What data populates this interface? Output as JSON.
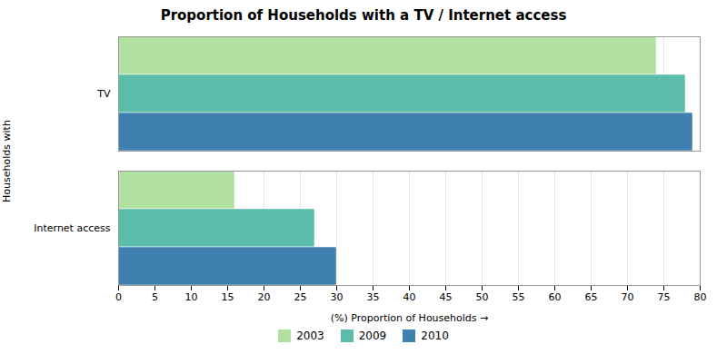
{
  "chart_data": {
    "type": "bar",
    "orientation": "horizontal",
    "title": "Proportion of Households with a TV / Internet access",
    "xlabel": "(%) Proportion of Households",
    "ylabel": "Households with",
    "categories": [
      "TV",
      "Internet access"
    ],
    "series": [
      {
        "name": "2003",
        "color": "#b2e0a0",
        "values": [
          74,
          16
        ]
      },
      {
        "name": "2009",
        "color": "#5bbcaa",
        "values": [
          78,
          27
        ]
      },
      {
        "name": "2010",
        "color": "#4080b0",
        "values": [
          79,
          30
        ]
      }
    ],
    "xlim": [
      0,
      80
    ],
    "xticks": [
      0,
      5,
      10,
      15,
      20,
      25,
      30,
      35,
      40,
      45,
      50,
      55,
      60,
      65,
      70,
      75,
      80
    ],
    "grid": true,
    "legend": "bottom"
  }
}
